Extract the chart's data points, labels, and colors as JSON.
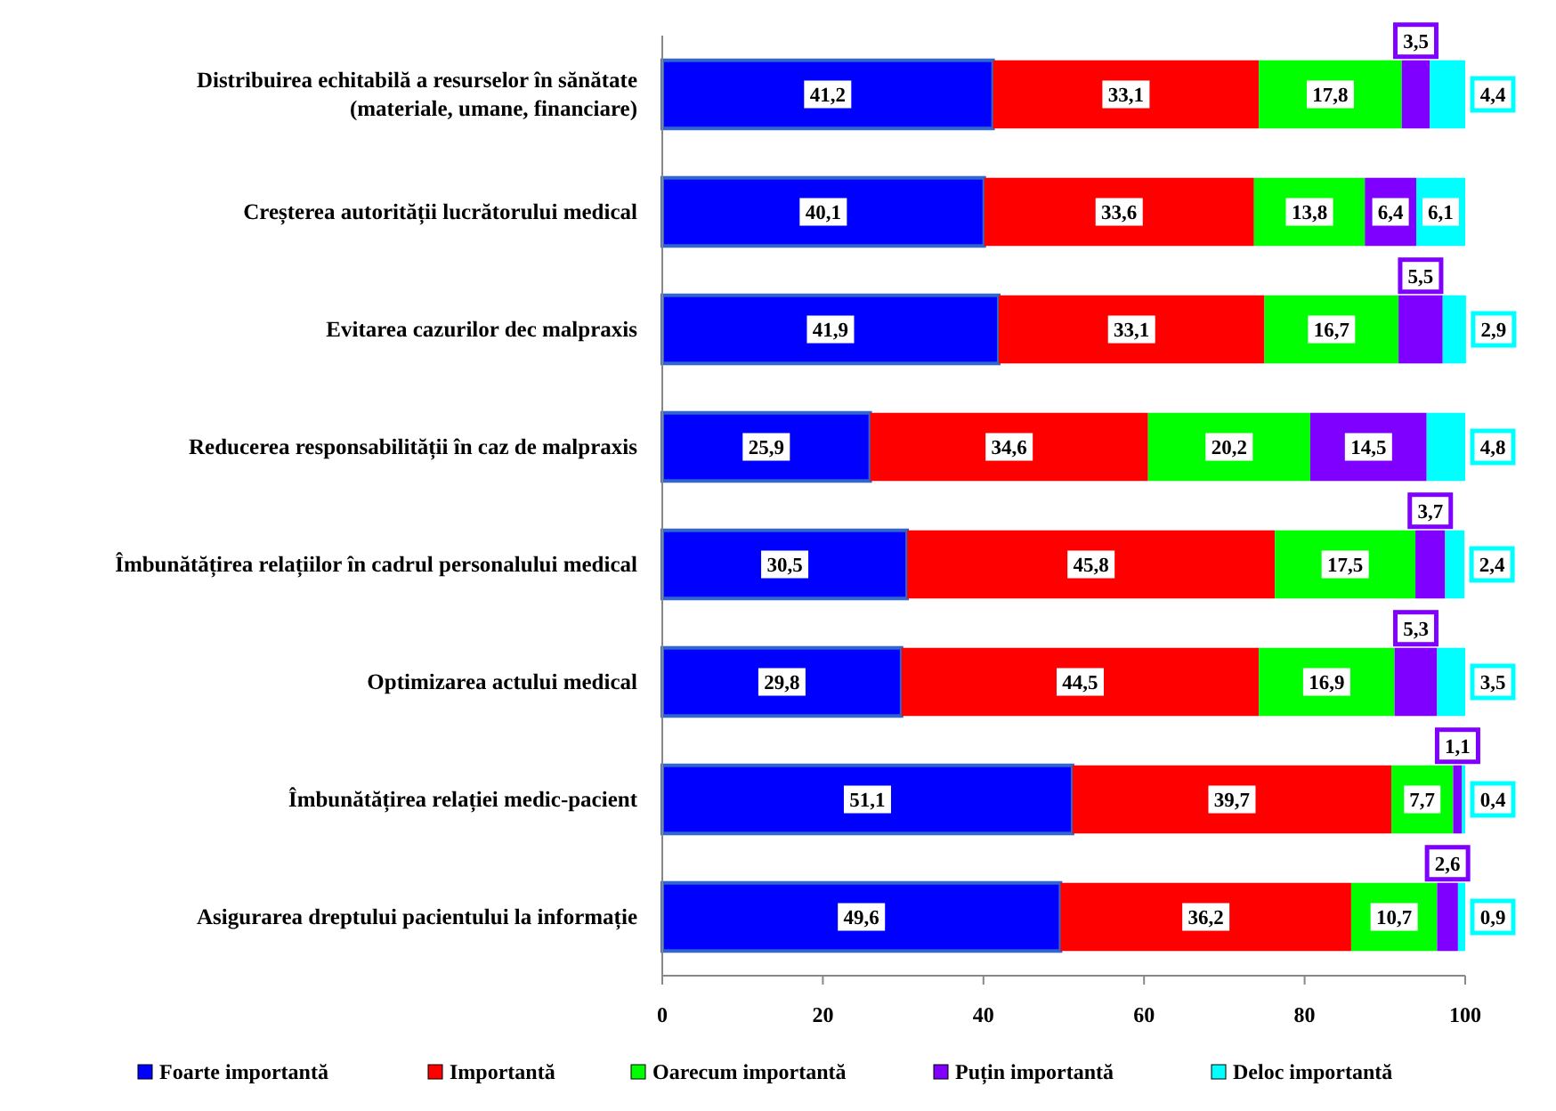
{
  "chart_data": {
    "type": "bar",
    "orientation": "horizontal",
    "stacked": true,
    "legend": "bottom",
    "grid": false,
    "categories": [
      "Distribuirea echitabilă a resurselor în sănătate (materiale, umane, financiare)",
      "Creșterea autorității lucrătorului medical",
      "Evitarea cazurilor dec malpraxis",
      "Reducerea responsabilității în caz de malpraxis",
      "Îmbunătățirea relațiilor în cadrul personalului medical",
      "Optimizarea actului medical",
      "Îmbunătățirea  relației medic-pacient",
      "Asigurarea dreptului pacientului la informație"
    ],
    "xlim": [
      0,
      100
    ],
    "xticks": [
      0,
      20,
      40,
      60,
      80,
      100
    ],
    "series": [
      {
        "name": "Foarte importantă",
        "color": "#0000ff",
        "values": [
          41.2,
          40.1,
          41.9,
          25.9,
          30.5,
          29.8,
          51.1,
          49.6
        ],
        "value_labels": [
          "41,2",
          "40,1",
          "41,9",
          "25,9",
          "30,5",
          "29,8",
          "51,1",
          "49,6"
        ]
      },
      {
        "name": "Importantă",
        "color": "#ff0000",
        "values": [
          33.1,
          33.6,
          33.1,
          34.6,
          45.8,
          44.5,
          39.7,
          36.2
        ],
        "value_labels": [
          "33,1",
          "33,6",
          "33,1",
          "34,6",
          "45,8",
          "44,5",
          "39,7",
          "36,2"
        ]
      },
      {
        "name": "Oarecum importantă",
        "color": "#00ff00",
        "values": [
          17.8,
          13.8,
          16.7,
          20.2,
          17.5,
          16.9,
          7.7,
          10.7
        ],
        "value_labels": [
          "17,8",
          "13,8",
          "16,7",
          "20,2",
          "17,5",
          "16,9",
          "7,7",
          "10,7"
        ]
      },
      {
        "name": "Puțin importantă",
        "color": "#7f00ff",
        "values": [
          3.5,
          6.4,
          5.5,
          14.5,
          3.7,
          5.3,
          1.1,
          2.6
        ],
        "value_labels": [
          "3,5",
          "6,4",
          "5,5",
          "14,5",
          "3,7",
          "5,3",
          "1,1",
          "2,6"
        ]
      },
      {
        "name": "Deloc importantă",
        "color": "#00ffff",
        "values": [
          4.4,
          6.1,
          2.9,
          4.8,
          2.4,
          3.5,
          0.4,
          0.9
        ],
        "value_labels": [
          "4,4",
          "6,1",
          "2,9",
          "4,8",
          "2,4",
          "3,5",
          "0,4",
          "0,9"
        ]
      }
    ]
  }
}
